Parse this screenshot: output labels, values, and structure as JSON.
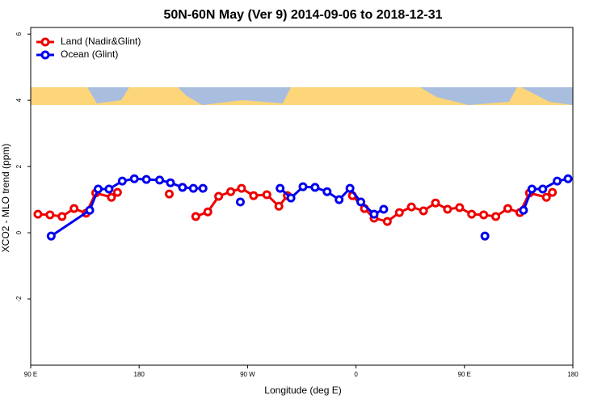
{
  "chart_data": {
    "type": "line",
    "title": "50N-60N May (Ver 9)   2014-09-06 to 2018-12-31",
    "x_label": "Longitude (deg E)",
    "y_label": "XCO2 - MLO trend (ppm)",
    "xlim": [
      90,
      540
    ],
    "xticks": [
      {
        "value": 90,
        "label": "90 E"
      },
      180,
      {
        "value": 270,
        "label": "90 W"
      },
      {
        "value": 360,
        "label": "0"
      },
      {
        "value": 450,
        "label": "90 E"
      },
      {
        "value": 540,
        "label": "180"
      }
    ],
    "ylim": [
      -4,
      6.2
    ],
    "yticks": [
      -2,
      0,
      2,
      4,
      6
    ],
    "legend": "top-left",
    "series": [
      {
        "name": "Land (Nadir&Glint)",
        "color": "#ee0000",
        "x": [
          96,
          106,
          116,
          126,
          136,
          144,
          157,
          162,
          180,
          205,
          215,
          227,
          237,
          246,
          256,
          265,
          275,
          286,
          296,
          303,
          330,
          357,
          367,
          375,
          386,
          396,
          406,
          416,
          426,
          436,
          446,
          456,
          466,
          476,
          486,
          496,
          504,
          518,
          523
        ],
        "values": [
          0.56,
          0.54,
          0.49,
          0.73,
          0.59,
          1.2,
          1.07,
          1.22,
          null,
          1.17,
          null,
          0.49,
          0.63,
          1.1,
          1.24,
          1.34,
          1.12,
          1.15,
          0.8,
          1.12,
          null,
          1.12,
          0.73,
          0.44,
          0.34,
          0.61,
          0.78,
          0.66,
          0.9,
          0.71,
          0.76,
          0.56,
          0.54,
          0.49,
          0.73,
          0.61,
          1.2,
          1.07,
          1.22
        ]
      },
      {
        "name": "Ocean (Glint)",
        "color": "#0000ee",
        "x": [
          107,
          139,
          146,
          155,
          166,
          176,
          186,
          197,
          206,
          216,
          225,
          233,
          250,
          264,
          280,
          297,
          306,
          316,
          326,
          336,
          346,
          355,
          364,
          375,
          383,
          420,
          467,
          480,
          499,
          506,
          515,
          527,
          536
        ],
        "values": [
          -0.1,
          0.68,
          1.32,
          1.32,
          1.56,
          1.63,
          1.61,
          1.59,
          1.51,
          1.37,
          1.34,
          1.34,
          null,
          0.93,
          null,
          1.34,
          1.05,
          1.39,
          1.37,
          1.24,
          1.0,
          1.34,
          0.93,
          0.56,
          0.71,
          null,
          -0.1,
          null,
          0.68,
          1.32,
          1.32,
          1.56,
          1.63
        ]
      }
    ]
  }
}
